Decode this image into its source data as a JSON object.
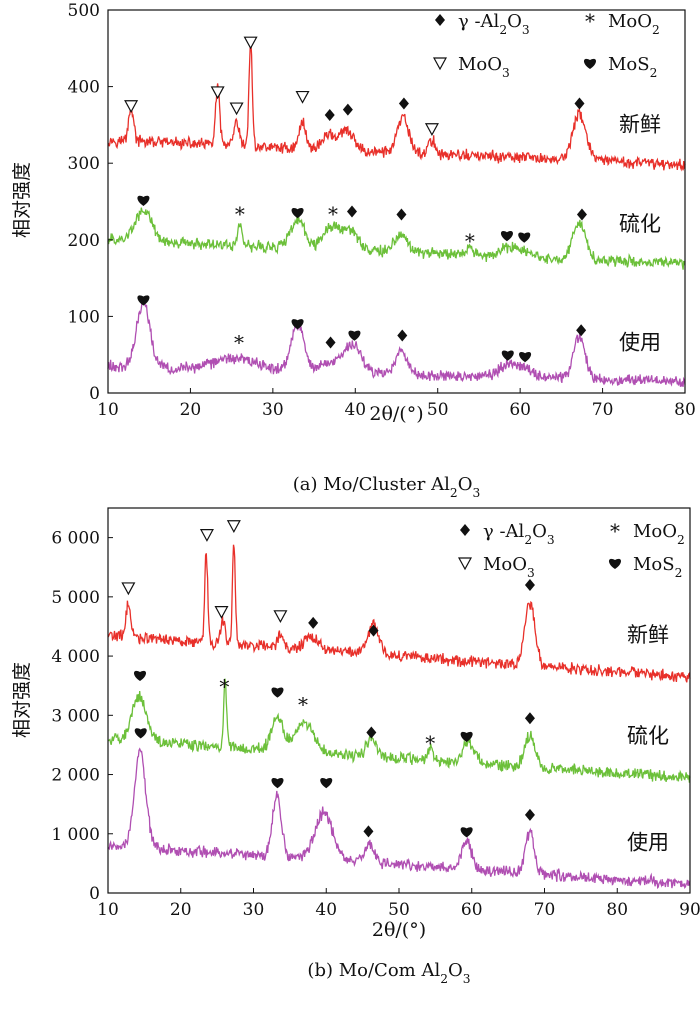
{
  "chart_data": [
    {
      "type": "line",
      "caption": "(a) Mo/Cluster Al2O3",
      "xlabel": "2θ/(°)",
      "ylabel": "相对强度",
      "xlim": [
        10,
        80
      ],
      "ylim": [
        0,
        500
      ],
      "xticks": [
        10,
        20,
        30,
        40,
        50,
        60,
        70,
        80
      ],
      "yticks": [
        0,
        100,
        200,
        300,
        400,
        500
      ],
      "ytick_labels": [
        "0",
        "100",
        "200",
        "300",
        "400",
        "500"
      ],
      "legend": [
        {
          "symbol": "diamond",
          "label": "γ -Al2O3"
        },
        {
          "symbol": "star",
          "label": "MoO2"
        },
        {
          "symbol": "triangle",
          "label": "MoO3"
        },
        {
          "symbol": "heart",
          "label": "MoS2"
        }
      ],
      "series": [
        {
          "name": "新鲜",
          "color": "#e8302a",
          "baseline": 330,
          "end": 298,
          "peaks": [
            [
              12.8,
              45,
              0.3
            ],
            [
              23.3,
              75,
              0.25
            ],
            [
              25.6,
              30,
              0.3
            ],
            [
              27.3,
              135,
              0.2
            ],
            [
              33.6,
              35,
              0.4
            ],
            [
              36.8,
              20,
              0.8
            ],
            [
              39,
              25,
              0.8
            ],
            [
              45.8,
              45,
              0.7
            ],
            [
              49.3,
              18,
              0.4
            ],
            [
              67.2,
              60,
              0.8
            ]
          ]
        },
        {
          "name": "硫化",
          "color": "#6cc03a",
          "baseline": 200,
          "end": 168,
          "peaks": [
            [
              14.3,
              40,
              1.0
            ],
            [
              26,
              30,
              0.25
            ],
            [
              33,
              35,
              0.9
            ],
            [
              37.2,
              30,
              1.0
            ],
            [
              39.5,
              25,
              0.9
            ],
            [
              45.6,
              25,
              0.8
            ],
            [
              53.9,
              8,
              0.4
            ],
            [
              58.5,
              12,
              0.9
            ],
            [
              60.5,
              10,
              0.9
            ],
            [
              67.2,
              48,
              0.8
            ]
          ]
        },
        {
          "name": "使用",
          "color": "#b04fb2",
          "baseline": 35,
          "end": 15,
          "peaks": [
            [
              14.3,
              85,
              0.8
            ],
            [
              25.5,
              15,
              2.5
            ],
            [
              33,
              60,
              0.8
            ],
            [
              37.2,
              15,
              1.2
            ],
            [
              39.8,
              35,
              1.0
            ],
            [
              45.6,
              30,
              0.7
            ],
            [
              58.5,
              18,
              0.9
            ],
            [
              60.5,
              12,
              0.9
            ],
            [
              67.2,
              55,
              0.7
            ]
          ]
        }
      ],
      "annotations": [
        {
          "symbol": "triangle",
          "x": 12.8,
          "y": 375
        },
        {
          "symbol": "triangle",
          "x": 23.3,
          "y": 393
        },
        {
          "symbol": "triangle",
          "x": 25.6,
          "y": 372
        },
        {
          "symbol": "triangle",
          "x": 27.3,
          "y": 458
        },
        {
          "symbol": "triangle",
          "x": 33.6,
          "y": 387
        },
        {
          "symbol": "diamond",
          "x": 36.9,
          "y": 363
        },
        {
          "symbol": "diamond",
          "x": 39.1,
          "y": 370
        },
        {
          "symbol": "diamond",
          "x": 45.9,
          "y": 378
        },
        {
          "symbol": "triangle",
          "x": 49.3,
          "y": 345
        },
        {
          "symbol": "diamond",
          "x": 67.2,
          "y": 378
        },
        {
          "symbol": "heart",
          "x": 14.3,
          "y": 252
        },
        {
          "symbol": "star",
          "x": 26.0,
          "y": 235
        },
        {
          "symbol": "heart",
          "x": 33.0,
          "y": 236
        },
        {
          "symbol": "star",
          "x": 37.3,
          "y": 235
        },
        {
          "symbol": "diamond",
          "x": 39.6,
          "y": 237
        },
        {
          "symbol": "diamond",
          "x": 45.6,
          "y": 233
        },
        {
          "symbol": "star",
          "x": 53.9,
          "y": 200
        },
        {
          "symbol": "heart",
          "x": 58.4,
          "y": 206
        },
        {
          "symbol": "heart",
          "x": 60.5,
          "y": 204
        },
        {
          "symbol": "diamond",
          "x": 67.5,
          "y": 233
        },
        {
          "symbol": "heart",
          "x": 14.3,
          "y": 122
        },
        {
          "symbol": "star",
          "x": 25.9,
          "y": 67
        },
        {
          "symbol": "heart",
          "x": 33.0,
          "y": 91
        },
        {
          "symbol": "diamond",
          "x": 37.0,
          "y": 66
        },
        {
          "symbol": "heart",
          "x": 39.9,
          "y": 76
        },
        {
          "symbol": "diamond",
          "x": 45.7,
          "y": 75
        },
        {
          "symbol": "heart",
          "x": 58.5,
          "y": 50
        },
        {
          "symbol": "heart",
          "x": 60.6,
          "y": 48
        },
        {
          "symbol": "diamond",
          "x": 67.4,
          "y": 82
        }
      ]
    },
    {
      "type": "line",
      "caption": "(b) Mo/Com Al2O3",
      "xlabel": "2θ/(°)",
      "ylabel": "相对强度",
      "xlim": [
        10,
        90
      ],
      "ylim": [
        0,
        6500
      ],
      "xticks": [
        10,
        20,
        30,
        40,
        50,
        60,
        70,
        80,
        90
      ],
      "yticks": [
        0,
        1000,
        2000,
        3000,
        4000,
        5000,
        6000
      ],
      "ytick_labels": [
        "0",
        "1 000",
        "2 000",
        "3 000",
        "4 000",
        "5 000",
        "6 000"
      ],
      "legend": [
        {
          "symbol": "diamond",
          "label": "γ -Al2O3"
        },
        {
          "symbol": "star",
          "label": "MoO2"
        },
        {
          "symbol": "triangle",
          "label": "MoO3"
        },
        {
          "symbol": "heart",
          "label": "MoS2"
        }
      ],
      "series": [
        {
          "name": "新鲜",
          "color": "#e8302a",
          "baseline": 4350,
          "end": 3650,
          "peaks": [
            [
              12.8,
              600,
              0.3
            ],
            [
              23.5,
              1550,
              0.2
            ],
            [
              25.8,
              400,
              0.3
            ],
            [
              27.3,
              1700,
              0.2
            ],
            [
              33.7,
              250,
              0.4
            ],
            [
              38,
              200,
              1.0
            ],
            [
              46.5,
              500,
              0.8
            ],
            [
              68,
              1050,
              0.7
            ]
          ]
        },
        {
          "name": "硫化",
          "color": "#6cc03a",
          "baseline": 2600,
          "end": 1950,
          "peaks": [
            [
              14.3,
              750,
              1.0
            ],
            [
              26.1,
              1100,
              0.2
            ],
            [
              33.3,
              550,
              0.8
            ],
            [
              37,
              500,
              1.2
            ],
            [
              46.2,
              300,
              0.7
            ],
            [
              54.3,
              250,
              0.3
            ],
            [
              59.5,
              350,
              0.8
            ],
            [
              68,
              550,
              0.7
            ]
          ]
        },
        {
          "name": "使用",
          "color": "#b04fb2",
          "baseline": 800,
          "end": 150,
          "peaks": [
            [
              14.4,
              1600,
              0.8
            ],
            [
              33.2,
              1050,
              0.6
            ],
            [
              39.7,
              800,
              1.2
            ],
            [
              46,
              300,
              0.7
            ],
            [
              59.3,
              450,
              0.7
            ],
            [
              68,
              700,
              0.6
            ]
          ]
        }
      ],
      "annotations": [
        {
          "symbol": "triangle",
          "x": 12.8,
          "y": 5150
        },
        {
          "symbol": "triangle",
          "x": 23.6,
          "y": 6050
        },
        {
          "symbol": "triangle",
          "x": 25.6,
          "y": 4750
        },
        {
          "symbol": "triangle",
          "x": 27.3,
          "y": 6200
        },
        {
          "symbol": "triangle",
          "x": 33.7,
          "y": 4680
        },
        {
          "symbol": "diamond",
          "x": 38.2,
          "y": 4560
        },
        {
          "symbol": "diamond",
          "x": 46.5,
          "y": 4430
        },
        {
          "symbol": "diamond",
          "x": 68.0,
          "y": 5200
        },
        {
          "symbol": "heart",
          "x": 14.4,
          "y": 3680
        },
        {
          "symbol": "star",
          "x": 26.0,
          "y": 3500
        },
        {
          "symbol": "heart",
          "x": 33.3,
          "y": 3400
        },
        {
          "symbol": "star",
          "x": 36.8,
          "y": 3200
        },
        {
          "symbol": "diamond",
          "x": 46.2,
          "y": 2710
        },
        {
          "symbol": "star",
          "x": 54.3,
          "y": 2550
        },
        {
          "symbol": "heart",
          "x": 59.3,
          "y": 2650
        },
        {
          "symbol": "diamond",
          "x": 68.0,
          "y": 2950
        },
        {
          "symbol": "heart",
          "x": 14.5,
          "y": 2710
        },
        {
          "symbol": "heart",
          "x": 33.3,
          "y": 1870
        },
        {
          "symbol": "heart",
          "x": 40.0,
          "y": 1870
        },
        {
          "symbol": "diamond",
          "x": 45.8,
          "y": 1040
        },
        {
          "symbol": "heart",
          "x": 59.3,
          "y": 1040
        },
        {
          "symbol": "diamond",
          "x": 68.0,
          "y": 1320
        }
      ]
    }
  ]
}
